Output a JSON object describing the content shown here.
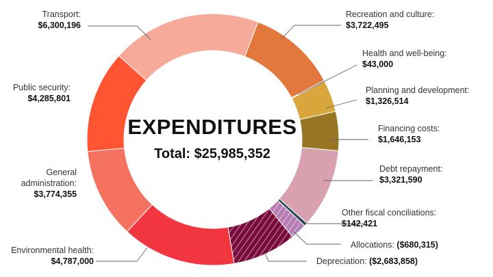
{
  "chart_data": {
    "type": "pie",
    "variant": "donut",
    "title": "EXPENDITURES",
    "total_label": "Total: $25,985,352",
    "slices": [
      {
        "name": "Transport",
        "label": "Transport:",
        "value_label": "$6,300,196",
        "value": 6300196,
        "color": "#f7a99a",
        "hatched": false
      },
      {
        "name": "Recreation and culture",
        "label": "Recreation and culture:",
        "value_label": "$3,722,495",
        "value": 3722495,
        "color": "#e2783c",
        "hatched": false
      },
      {
        "name": "Health and well-being",
        "label": "Health and well-being:",
        "value_label": "$43,000",
        "value": 43000,
        "color": "#2d4a55",
        "hatched": false
      },
      {
        "name": "Planning and development",
        "label": "Planning and development:",
        "value_label": "$1,326,514",
        "value": 1326514,
        "color": "#d9a63b",
        "hatched": false
      },
      {
        "name": "Financing costs",
        "label": "Financing costs:",
        "value_label": "$1,646,153",
        "value": 1646153,
        "color": "#977624",
        "hatched": false
      },
      {
        "name": "Debt repayment",
        "label": "Debt repayment:",
        "value_label": "$3,321,590",
        "value": 3321590,
        "color": "#d9a0b0",
        "hatched": false
      },
      {
        "name": "Other fiscal conciliations",
        "label": "Other fiscal conciliations:",
        "value_label": "$142,421",
        "value": 142421,
        "color": "#2d4a55",
        "hatched": false
      },
      {
        "name": "Allocations",
        "label": "Allocations:",
        "value_label": "($680,315)",
        "value": -680315,
        "color": "#b77eb5",
        "hatched": true
      },
      {
        "name": "Depreciation",
        "label": "Depreciation:",
        "value_label": "($2,683,858)",
        "value": -2683858,
        "color": "#7a0c3d",
        "hatched": true
      },
      {
        "name": "Environmental health",
        "label": "Environmental health:",
        "value_label": "$4,787,000",
        "value": 4787000,
        "color": "#f2363f",
        "hatched": false
      },
      {
        "name": "General administration",
        "label": "General administration:",
        "value_label": "$3,774,355",
        "value": 3774355,
        "color": "#f57160",
        "hatched": false
      },
      {
        "name": "Public security",
        "label": "Public security:",
        "value_label": "$4,285,801",
        "value": 4285801,
        "color": "#ff5533",
        "hatched": false
      }
    ],
    "general_admin_lines": [
      "General",
      "administration:"
    ]
  }
}
